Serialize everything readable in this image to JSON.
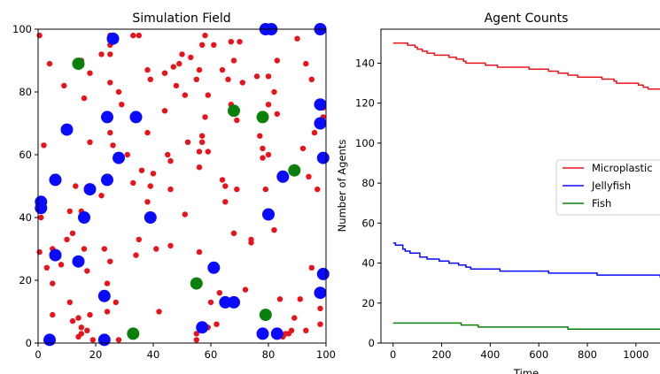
{
  "chart_data": [
    {
      "type": "scatter",
      "title": "Simulation Field",
      "xlabel": "",
      "ylabel": "",
      "xlim": [
        0,
        100
      ],
      "ylim": [
        0,
        100
      ],
      "xticks": [
        0,
        20,
        40,
        60,
        80,
        100
      ],
      "yticks": [
        0,
        20,
        40,
        60,
        80,
        100
      ],
      "series": [
        {
          "name": "Microplastic",
          "color": "#e8141c",
          "marker_size": "small",
          "points": [
            [
              0.5,
              98
            ],
            [
              4,
              89
            ],
            [
              2,
              63
            ],
            [
              9,
              82
            ],
            [
              13,
              50
            ],
            [
              11,
              42
            ],
            [
              5,
              30
            ],
            [
              0.5,
              29
            ],
            [
              3,
              24
            ],
            [
              5,
              19
            ],
            [
              5,
              9
            ],
            [
              8,
              25
            ],
            [
              10,
              33
            ],
            [
              12,
              35
            ],
            [
              11,
              13
            ],
            [
              12,
              7
            ],
            [
              14,
              8
            ],
            [
              15,
              5
            ],
            [
              14,
              2
            ],
            [
              17,
              4
            ],
            [
              19,
              1
            ],
            [
              15,
              3
            ],
            [
              15,
              42
            ],
            [
              16,
              30
            ],
            [
              17,
              23
            ],
            [
              18,
              64
            ],
            [
              18,
              86
            ],
            [
              15,
              90
            ],
            [
              16,
              78
            ],
            [
              18,
              9
            ],
            [
              22,
              92
            ],
            [
              23,
              30
            ],
            [
              24,
              19
            ],
            [
              25,
              26
            ],
            [
              27,
              13
            ],
            [
              24,
              10
            ],
            [
              25,
              98
            ],
            [
              25,
              95
            ],
            [
              25,
              92
            ],
            [
              25,
              83
            ],
            [
              28,
              80
            ],
            [
              26,
              63
            ],
            [
              25,
              67
            ],
            [
              29,
              76
            ],
            [
              31,
              60
            ],
            [
              33,
              98
            ],
            [
              35,
              98
            ],
            [
              33,
              51
            ],
            [
              34,
              28
            ],
            [
              35,
              33
            ],
            [
              36,
              55
            ],
            [
              38,
              45
            ],
            [
              38,
              67
            ],
            [
              39,
              50
            ],
            [
              40,
              54
            ],
            [
              41,
              30
            ],
            [
              39,
              84
            ],
            [
              42,
              10
            ],
            [
              44,
              86
            ],
            [
              45,
              60
            ],
            [
              46,
              58
            ],
            [
              46,
              49
            ],
            [
              46,
              31
            ],
            [
              47,
              88
            ],
            [
              48,
              82
            ],
            [
              49,
              89
            ],
            [
              50,
              92
            ],
            [
              51,
              79
            ],
            [
              51,
              41
            ],
            [
              52,
              64
            ],
            [
              53,
              91
            ],
            [
              55,
              84
            ],
            [
              56,
              56
            ],
            [
              56,
              87
            ],
            [
              56,
              61
            ],
            [
              55,
              3
            ],
            [
              55,
              1
            ],
            [
              56,
              29
            ],
            [
              57,
              64
            ],
            [
              57,
              66
            ],
            [
              57,
              95
            ],
            [
              58,
              98
            ],
            [
              58,
              72
            ],
            [
              59,
              79
            ],
            [
              59,
              61
            ],
            [
              60,
              13
            ],
            [
              61,
              95
            ],
            [
              62,
              6
            ],
            [
              63,
              16
            ],
            [
              64,
              87
            ],
            [
              64,
              52
            ],
            [
              65,
              50
            ],
            [
              65,
              45
            ],
            [
              66,
              84
            ],
            [
              67,
              96
            ],
            [
              67,
              76
            ],
            [
              68,
              90
            ],
            [
              69,
              71
            ],
            [
              68,
              35
            ],
            [
              69,
              49
            ],
            [
              70,
              96
            ],
            [
              71,
              83
            ],
            [
              72,
              17
            ],
            [
              74,
              33
            ],
            [
              74,
              32
            ],
            [
              76,
              85
            ],
            [
              77,
              66
            ],
            [
              78,
              62
            ],
            [
              78,
              59
            ],
            [
              79,
              49
            ],
            [
              80,
              76
            ],
            [
              80,
              60
            ],
            [
              82,
              36
            ],
            [
              82,
              80
            ],
            [
              83,
              73
            ],
            [
              84,
              14
            ],
            [
              85,
              2
            ],
            [
              86,
              3
            ],
            [
              87,
              3
            ],
            [
              88,
              4
            ],
            [
              89,
              8
            ],
            [
              90,
              97
            ],
            [
              91,
              14
            ],
            [
              92,
              62
            ],
            [
              93,
              89
            ],
            [
              94,
              53
            ],
            [
              95,
              84
            ],
            [
              96,
              67
            ],
            [
              97,
              49
            ],
            [
              98,
              11
            ],
            [
              99,
              75
            ],
            [
              99,
              72
            ],
            [
              98,
              6
            ],
            [
              95,
              24
            ],
            [
              93,
              4
            ],
            [
              90,
              55
            ],
            [
              83,
              90
            ],
            [
              80,
              85
            ],
            [
              59,
              5
            ],
            [
              22,
              47
            ],
            [
              44,
              74
            ],
            [
              38,
              87
            ],
            [
              28,
              1
            ],
            [
              1,
              40
            ]
          ]
        },
        {
          "name": "Jellyfish",
          "color": "#0a0aff",
          "marker_size": "large",
          "points": [
            [
              1,
              45
            ],
            [
              1,
              43
            ],
            [
              4,
              1
            ],
            [
              6,
              52
            ],
            [
              6,
              28
            ],
            [
              10,
              68
            ],
            [
              14,
              26
            ],
            [
              16,
              40
            ],
            [
              18,
              49
            ],
            [
              23,
              15
            ],
            [
              23,
              1
            ],
            [
              24,
              52
            ],
            [
              24,
              72
            ],
            [
              26,
              97
            ],
            [
              28,
              59
            ],
            [
              34,
              72
            ],
            [
              39,
              40
            ],
            [
              57,
              5
            ],
            [
              61,
              24
            ],
            [
              65,
              13
            ],
            [
              68,
              13
            ],
            [
              78,
              3
            ],
            [
              79,
              100
            ],
            [
              80,
              41
            ],
            [
              81,
              100
            ],
            [
              83,
              3
            ],
            [
              85,
              53
            ],
            [
              98,
              100
            ],
            [
              98,
              76
            ],
            [
              98,
              70
            ],
            [
              99,
              59
            ],
            [
              99,
              22
            ],
            [
              98,
              16
            ]
          ]
        },
        {
          "name": "Fish",
          "color": "#0a800a",
          "marker_size": "large",
          "points": [
            [
              14,
              89
            ],
            [
              33,
              3
            ],
            [
              55,
              19
            ],
            [
              68,
              74
            ],
            [
              78,
              72
            ],
            [
              79,
              9
            ],
            [
              89,
              55
            ]
          ]
        }
      ]
    },
    {
      "type": "line",
      "title": "Agent Counts",
      "xlabel": "Time",
      "ylabel": "Number of Agents",
      "xlim": [
        -50,
        1110
      ],
      "ylim": [
        0,
        157
      ],
      "xticks": [
        0,
        200,
        400,
        600,
        800,
        1000
      ],
      "yticks": [
        0,
        20,
        40,
        60,
        80,
        100,
        120,
        140
      ],
      "legend_position": "center-right",
      "series": [
        {
          "name": "Microplastic",
          "color": "#e8141c",
          "step_points": [
            [
              0,
              150
            ],
            [
              60,
              149
            ],
            [
              90,
              148
            ],
            [
              100,
              147
            ],
            [
              120,
              146
            ],
            [
              140,
              145
            ],
            [
              170,
              144
            ],
            [
              230,
              143
            ],
            [
              260,
              142
            ],
            [
              290,
              141
            ],
            [
              300,
              140
            ],
            [
              380,
              139
            ],
            [
              390,
              139
            ],
            [
              430,
              138
            ],
            [
              520,
              138
            ],
            [
              560,
              137
            ],
            [
              600,
              137
            ],
            [
              640,
              136
            ],
            [
              680,
              135
            ],
            [
              720,
              134
            ],
            [
              760,
              133
            ],
            [
              860,
              132
            ],
            [
              910,
              131
            ],
            [
              920,
              130
            ],
            [
              1010,
              129
            ],
            [
              1030,
              128
            ],
            [
              1050,
              127
            ],
            [
              1100,
              127
            ]
          ]
        },
        {
          "name": "Jellyfish",
          "color": "#0a0aff",
          "step_points": [
            [
              0,
              50
            ],
            [
              10,
              49
            ],
            [
              40,
              47
            ],
            [
              50,
              46
            ],
            [
              70,
              45
            ],
            [
              110,
              43
            ],
            [
              140,
              42
            ],
            [
              190,
              41
            ],
            [
              230,
              40
            ],
            [
              270,
              39
            ],
            [
              300,
              38
            ],
            [
              320,
              37
            ],
            [
              440,
              36
            ],
            [
              640,
              35
            ],
            [
              840,
              34
            ],
            [
              1100,
              33
            ],
            [
              1105,
              32
            ]
          ]
        },
        {
          "name": "Fish",
          "color": "#0a800a",
          "step_points": [
            [
              0,
              10
            ],
            [
              280,
              9
            ],
            [
              350,
              8
            ],
            [
              720,
              7
            ],
            [
              1100,
              7
            ]
          ]
        }
      ]
    }
  ]
}
